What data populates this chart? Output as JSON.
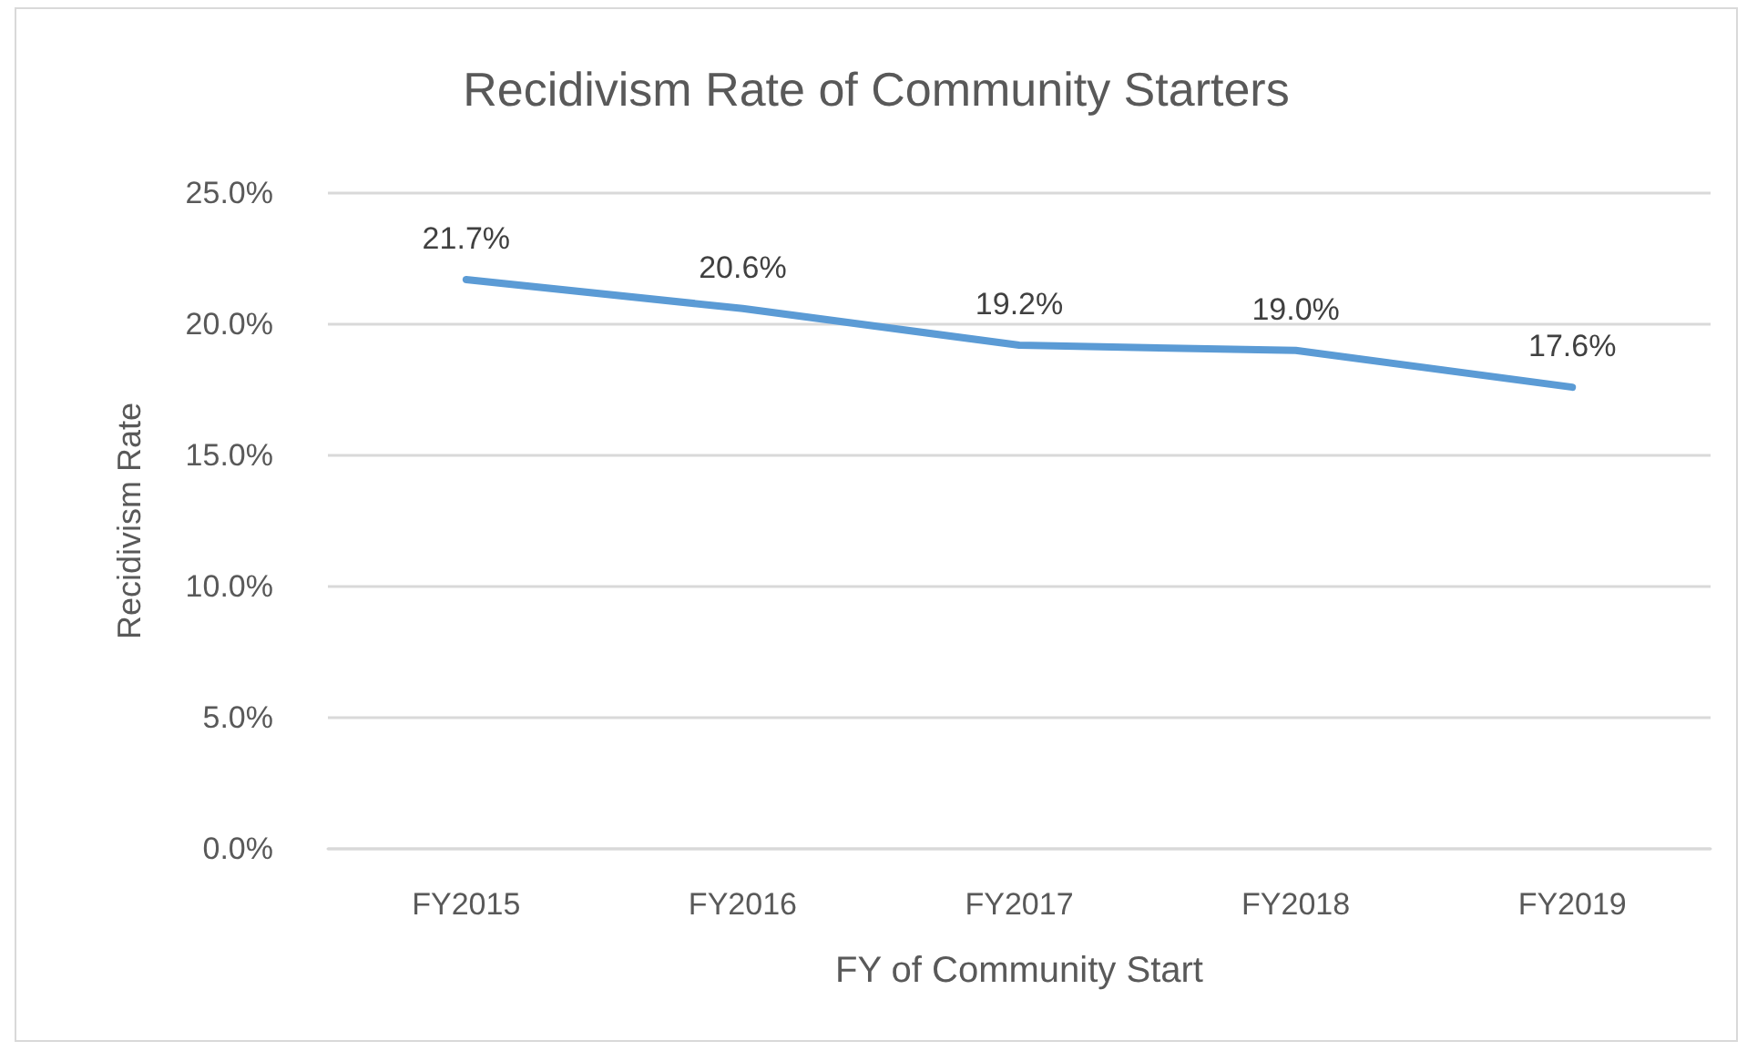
{
  "chart_data": {
    "type": "line",
    "title": "Recidivism Rate of Community Starters",
    "xlabel": "FY of Community Start",
    "ylabel": "Recidivism Rate",
    "categories": [
      "FY2015",
      "FY2016",
      "FY2017",
      "FY2018",
      "FY2019"
    ],
    "series": [
      {
        "color": "#5b9bd5",
        "values": [
          21.7,
          20.6,
          19.2,
          19.0,
          17.6
        ],
        "value_labels": [
          "21.7%",
          "20.6%",
          "19.2%",
          "19.0%",
          "17.6%"
        ]
      }
    ],
    "ylim": [
      0,
      25
    ],
    "yticks": [
      {
        "value": 0,
        "label": "0.0%"
      },
      {
        "value": 5,
        "label": "5.0%"
      },
      {
        "value": 10,
        "label": "10.0%"
      },
      {
        "value": 15,
        "label": "15.0%"
      },
      {
        "value": 20,
        "label": "20.0%"
      },
      {
        "value": 25,
        "label": "25.0%"
      }
    ],
    "grid": "y",
    "marker": "none",
    "line_style": "solid"
  }
}
